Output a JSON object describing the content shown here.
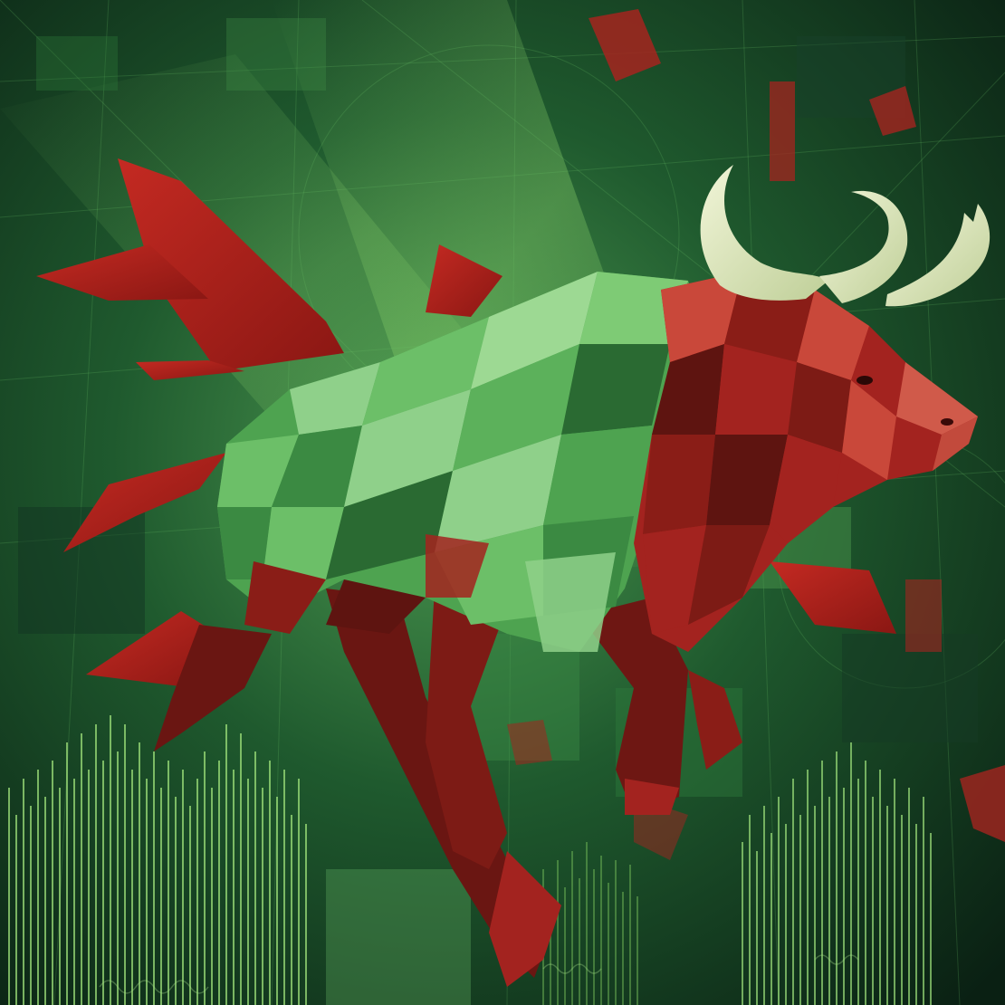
{
  "artwork": {
    "subject": "bull-illustration",
    "style": "low-poly",
    "palette": {
      "background_dark": "#0c2416",
      "background_mid": "#1f5a2e",
      "background_light": "#58a85a",
      "bull_green_light": "#8fd08a",
      "bull_green": "#4ea350",
      "bull_green_dark": "#2a6a32",
      "bull_red": "#a3231f",
      "bull_red_dark": "#5e1410",
      "bull_red_light": "#c9483a",
      "horn": "#e4ecc6",
      "shard_red": "#b4201e",
      "chart_line": "#9de07a"
    }
  }
}
